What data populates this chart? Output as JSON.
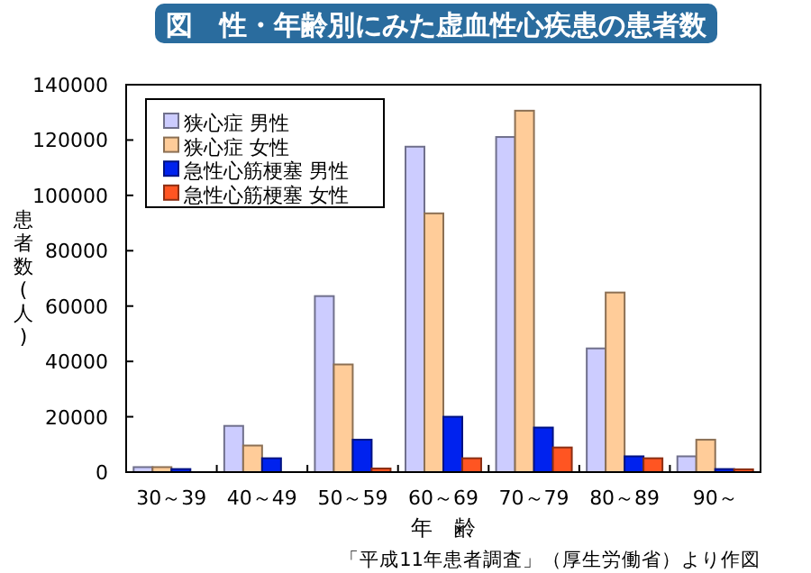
{
  "chart_data": {
    "type": "bar",
    "title": "図　性・年齢別にみた虚血性心疾患の患者数",
    "xlabel": "年　齢",
    "ylabel": "患者数(人)",
    "categories": [
      "30～39",
      "40～49",
      "50～59",
      "60～69",
      "70～79",
      "80～89",
      "90～"
    ],
    "series": [
      {
        "name": "狭心症 男性",
        "color": "#ccccff",
        "values": [
          1800,
          16700,
          63600,
          117600,
          121100,
          44700,
          5700
        ]
      },
      {
        "name": "狭心症 女性",
        "color": "#ffcc99",
        "values": [
          1800,
          9600,
          38900,
          93500,
          130600,
          64900,
          11700
        ]
      },
      {
        "name": "急性心筋梗塞 男性",
        "color": "#0022ee",
        "values": [
          1100,
          5000,
          11700,
          20000,
          16100,
          5700,
          1100
        ]
      },
      {
        "name": "急性心筋梗塞 女性",
        "color": "#ff5522",
        "values": [
          null,
          null,
          1300,
          5000,
          8900,
          5000,
          1000
        ]
      }
    ],
    "ylim": [
      0,
      140000
    ],
    "yticks": [
      0,
      20000,
      40000,
      60000,
      80000,
      100000,
      120000,
      140000
    ],
    "legend": "top left",
    "annotations": [
      "「平成11年患者調査」（厚生労働省）より作図"
    ]
  }
}
